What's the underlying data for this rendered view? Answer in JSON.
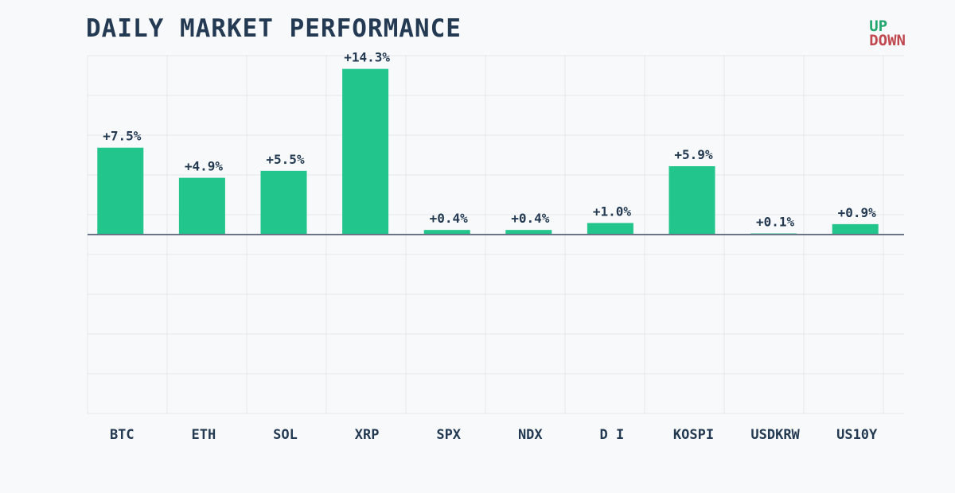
{
  "chart_data": {
    "type": "bar",
    "title": "DAILY MARKET PERFORMANCE",
    "categories": [
      "BTC",
      "ETH",
      "SOL",
      "XRP",
      "SPX",
      "NDX",
      "D I",
      "KOSPI",
      "USDKRW",
      "US10Y"
    ],
    "values": [
      7.5,
      4.9,
      5.5,
      14.3,
      0.4,
      0.4,
      1.0,
      5.9,
      0.1,
      0.9
    ],
    "value_labels": [
      "+7.5%",
      "+4.9%",
      "+5.5%",
      "+14.3%",
      "+0.4%",
      "+0.4%",
      "+1.0%",
      "+5.9%",
      "+0.1%",
      "+0.9%"
    ],
    "ylim": [
      -15,
      15
    ],
    "grid": true,
    "legend": {
      "position": "top-right",
      "up_label": "UP",
      "down_label": "DOWN"
    },
    "colors": {
      "up": "#22c58b",
      "down": "#c0494f",
      "zero_line": "#6b7486"
    }
  }
}
